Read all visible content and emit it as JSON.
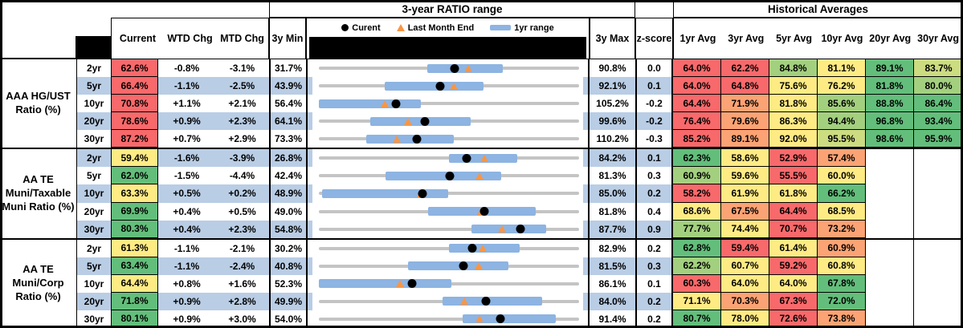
{
  "header": {
    "sections": {
      "chart": "3-year RATIO range",
      "averages": "Historical Averages"
    },
    "columns": {
      "current": "Current",
      "wtd": "WTD Chg",
      "mtd": "MTD Chg",
      "min": "3y Min",
      "max": "3y Max",
      "z": "z-score"
    },
    "avg_columns": [
      "1yr Avg",
      "3yr Avg",
      "5yr Avg",
      "10yr Avg",
      "20yr Avg",
      "30yr Avg"
    ],
    "legend": {
      "current": "Curent",
      "last_month": "Last Month End",
      "range": "1yr range"
    }
  },
  "colors": {
    "palette": {
      "r": "#F8696B",
      "o": "#FBA374",
      "y": "#FFEB84",
      "yg": "#CCDC81",
      "lg": "#A3D07E",
      "g": "#63BE7B"
    },
    "band_blue": "#B9CDE5",
    "bar_blue": "#8DB4E2",
    "track_gray": "#C4C4C4",
    "triangle_orange": "#F79646",
    "dot_black": "#000000"
  },
  "chart_data": {
    "type": "table+dot-range",
    "note": "Each row plots Current (black dot), Last Month End (orange triangle) and 1yr range (blue bar) on a 3y Min..3y Max gray track. Values in percent.",
    "groups": [
      {
        "label": "AAA HG/UST Ratio (%)",
        "rows": [
          {
            "tenor": "2yr",
            "current": 62.6,
            "cur_color": "r",
            "wtd": "-0.8%",
            "mtd": "-3.1%",
            "min": 31.7,
            "max": 90.8,
            "z": "0.0",
            "lme": 65.7,
            "bar": [
              56.3,
              73.5
            ],
            "avgs": [
              [
                64.0,
                "r"
              ],
              [
                62.2,
                "r"
              ],
              [
                84.8,
                "lg"
              ],
              [
                81.1,
                "y"
              ],
              [
                89.1,
                "g"
              ],
              [
                83.7,
                "yg"
              ]
            ]
          },
          {
            "tenor": "5yr",
            "current": 66.4,
            "cur_color": "r",
            "wtd": "-1.1%",
            "mtd": "-2.5%",
            "min": 43.9,
            "max": 92.1,
            "z": "0.1",
            "lme": 68.9,
            "bar": [
              56.1,
              74.4
            ],
            "avgs": [
              [
                64.0,
                "r"
              ],
              [
                64.8,
                "r"
              ],
              [
                75.6,
                "y"
              ],
              [
                76.2,
                "y"
              ],
              [
                81.8,
                "g"
              ],
              [
                80.0,
                "lg"
              ]
            ]
          },
          {
            "tenor": "10yr",
            "current": 70.8,
            "cur_color": "r",
            "wtd": "+1.1%",
            "mtd": "+2.1%",
            "min": 56.4,
            "max": 105.2,
            "z": "-0.2",
            "lme": 68.7,
            "bar": [
              56.4,
              75.6
            ],
            "avgs": [
              [
                64.4,
                "r"
              ],
              [
                71.9,
                "o"
              ],
              [
                81.8,
                "y"
              ],
              [
                85.6,
                "lg"
              ],
              [
                88.8,
                "g"
              ],
              [
                86.4,
                "g"
              ]
            ]
          },
          {
            "tenor": "20yr",
            "current": 78.6,
            "cur_color": "r",
            "wtd": "+0.9%",
            "mtd": "+2.3%",
            "min": 64.1,
            "max": 99.6,
            "z": "-0.2",
            "lme": 76.3,
            "bar": [
              71.1,
              84.8
            ],
            "avgs": [
              [
                76.4,
                "r"
              ],
              [
                79.6,
                "o"
              ],
              [
                86.3,
                "y"
              ],
              [
                94.4,
                "lg"
              ],
              [
                96.8,
                "g"
              ],
              [
                93.4,
                "g"
              ]
            ]
          },
          {
            "tenor": "30yr",
            "current": 87.2,
            "cur_color": "r",
            "wtd": "+0.7%",
            "mtd": "+2.9%",
            "min": 73.3,
            "max": 110.2,
            "z": "-0.3",
            "lme": 84.3,
            "bar": [
              80.0,
              92.4
            ],
            "avgs": [
              [
                85.2,
                "r"
              ],
              [
                89.1,
                "o"
              ],
              [
                92.0,
                "y"
              ],
              [
                95.5,
                "yg"
              ],
              [
                98.6,
                "g"
              ],
              [
                95.9,
                "g"
              ]
            ]
          }
        ]
      },
      {
        "label": "AA TE Muni/Taxable Muni Ratio (%)",
        "rows": [
          {
            "tenor": "2yr",
            "current": 59.4,
            "cur_color": "y",
            "wtd": "-1.6%",
            "mtd": "-3.9%",
            "min": 26.8,
            "max": 84.2,
            "z": "0.1",
            "lme": 63.3,
            "bar": [
              55.5,
              70.6
            ],
            "avgs": [
              [
                62.3,
                "g"
              ],
              [
                58.6,
                "y"
              ],
              [
                52.9,
                "r"
              ],
              [
                57.4,
                "o"
              ]
            ]
          },
          {
            "tenor": "5yr",
            "current": 62.0,
            "cur_color": "g",
            "wtd": "-1.5%",
            "mtd": "-4.4%",
            "min": 42.4,
            "max": 81.3,
            "z": "0.3",
            "lme": 66.4,
            "bar": [
              52.4,
              69.6
            ],
            "avgs": [
              [
                60.9,
                "lg"
              ],
              [
                59.6,
                "y"
              ],
              [
                55.5,
                "r"
              ],
              [
                60.0,
                "y"
              ]
            ]
          },
          {
            "tenor": "10yr",
            "current": 63.3,
            "cur_color": "y",
            "wtd": "+0.5%",
            "mtd": "+0.2%",
            "min": 48.9,
            "max": 85.0,
            "z": "0.2",
            "lme": 63.1,
            "bar": [
              49.4,
              66.8
            ],
            "avgs": [
              [
                58.2,
                "r"
              ],
              [
                61.9,
                "y"
              ],
              [
                61.8,
                "y"
              ],
              [
                66.2,
                "g"
              ]
            ]
          },
          {
            "tenor": "20yr",
            "current": 69.9,
            "cur_color": "g",
            "wtd": "+0.4%",
            "mtd": "+0.5%",
            "min": 49.0,
            "max": 81.8,
            "z": "0.4",
            "lme": 69.4,
            "bar": [
              62.8,
              76.3
            ],
            "avgs": [
              [
                68.6,
                "y"
              ],
              [
                67.5,
                "o"
              ],
              [
                64.4,
                "r"
              ],
              [
                68.5,
                "y"
              ]
            ]
          },
          {
            "tenor": "30yr",
            "current": 80.3,
            "cur_color": "g",
            "wtd": "+0.4%",
            "mtd": "+2.3%",
            "min": 54.8,
            "max": 87.7,
            "z": "0.9",
            "lme": 78.0,
            "bar": [
              74.1,
              83.5
            ],
            "avgs": [
              [
                77.7,
                "lg"
              ],
              [
                74.4,
                "y"
              ],
              [
                70.7,
                "r"
              ],
              [
                73.2,
                "o"
              ]
            ]
          }
        ]
      },
      {
        "label": "AA TE Muni/Corp Ratio (%)",
        "rows": [
          {
            "tenor": "2yr",
            "current": 61.3,
            "cur_color": "y",
            "wtd": "-1.1%",
            "mtd": "-2.1%",
            "min": 30.2,
            "max": 82.9,
            "z": "0.2",
            "lme": 63.4,
            "bar": [
              56.6,
              70.8
            ],
            "avgs": [
              [
                62.8,
                "g"
              ],
              [
                59.4,
                "r"
              ],
              [
                61.4,
                "y"
              ],
              [
                60.9,
                "o"
              ]
            ]
          },
          {
            "tenor": "5yr",
            "current": 63.4,
            "cur_color": "g",
            "wtd": "-1.1%",
            "mtd": "-2.4%",
            "min": 40.8,
            "max": 81.5,
            "z": "0.3",
            "lme": 65.8,
            "bar": [
              54.8,
              70.5
            ],
            "avgs": [
              [
                62.2,
                "lg"
              ],
              [
                60.7,
                "y"
              ],
              [
                59.2,
                "r"
              ],
              [
                60.8,
                "y"
              ]
            ]
          },
          {
            "tenor": "10yr",
            "current": 64.4,
            "cur_color": "y",
            "wtd": "+0.8%",
            "mtd": "+1.6%",
            "min": 52.3,
            "max": 86.1,
            "z": "0.1",
            "lme": 62.8,
            "bar": [
              52.3,
              69.5
            ],
            "avgs": [
              [
                60.3,
                "r"
              ],
              [
                64.0,
                "y"
              ],
              [
                64.0,
                "y"
              ],
              [
                67.8,
                "g"
              ]
            ]
          },
          {
            "tenor": "20yr",
            "current": 71.8,
            "cur_color": "g",
            "wtd": "+0.9%",
            "mtd": "+2.8%",
            "min": 49.9,
            "max": 84.0,
            "z": "0.2",
            "lme": 69.0,
            "bar": [
              66.1,
              79.2
            ],
            "avgs": [
              [
                71.1,
                "y"
              ],
              [
                70.3,
                "o"
              ],
              [
                67.3,
                "r"
              ],
              [
                72.0,
                "g"
              ]
            ]
          },
          {
            "tenor": "30yr",
            "current": 80.1,
            "cur_color": "g",
            "wtd": "+0.9%",
            "mtd": "+3.0%",
            "min": 54.0,
            "max": 91.4,
            "z": "0.2",
            "lme": 77.1,
            "bar": [
              74.7,
              88.0
            ],
            "avgs": [
              [
                80.7,
                "g"
              ],
              [
                78.0,
                "y"
              ],
              [
                72.6,
                "r"
              ],
              [
                73.8,
                "o"
              ]
            ]
          }
        ]
      }
    ]
  }
}
